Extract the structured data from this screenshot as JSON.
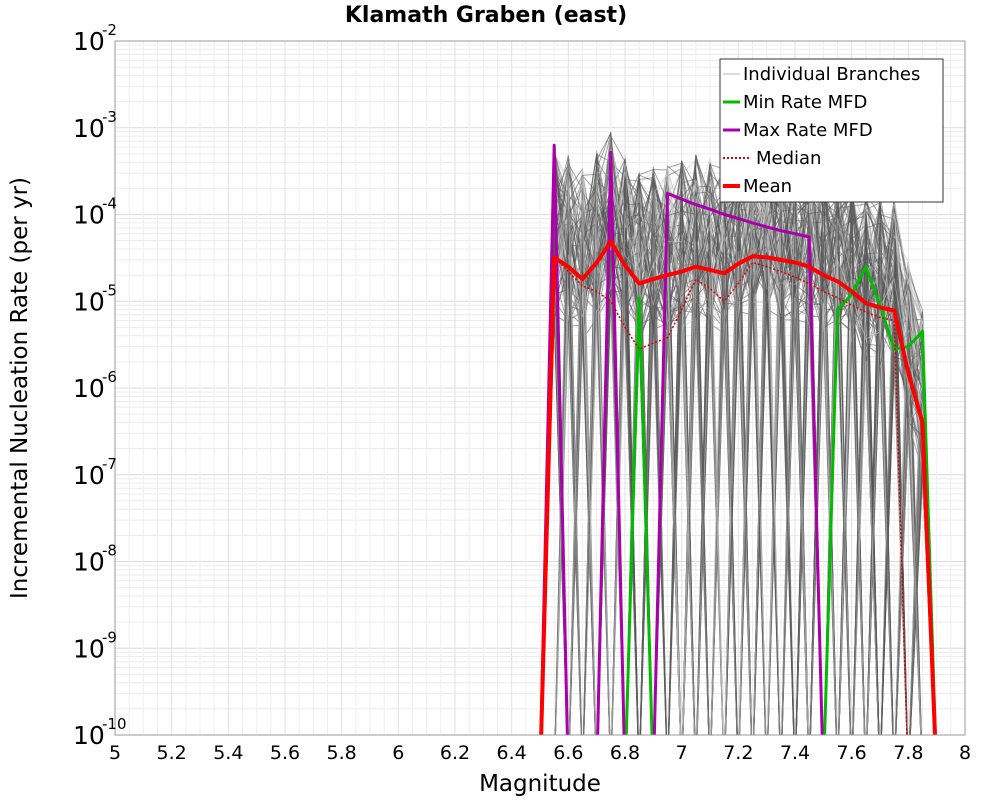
{
  "chart_data": {
    "type": "line",
    "title": "Klamath Graben (east)",
    "xlabel": "Magnitude",
    "ylabel": "Incremental Nucleation Rate (per yr)",
    "xlim": [
      5.0,
      8.0
    ],
    "ylim_log10": [
      -10,
      -2
    ],
    "y_scale": "log",
    "grid": true,
    "legend_position": "top-right",
    "x_ticks": [
      "5",
      "5.2",
      "5.4",
      "5.6",
      "5.8",
      "6",
      "6.2",
      "6.4",
      "6.6",
      "6.8",
      "7",
      "7.2",
      "7.4",
      "7.6",
      "7.8",
      "8"
    ],
    "y_ticks": [
      {
        "base": "10",
        "exp": "-2",
        "log": -2
      },
      {
        "base": "10",
        "exp": "-3",
        "log": -3
      },
      {
        "base": "10",
        "exp": "-4",
        "log": -4
      },
      {
        "base": "10",
        "exp": "-5",
        "log": -5
      },
      {
        "base": "10",
        "exp": "-6",
        "log": -6
      },
      {
        "base": "10",
        "exp": "-7",
        "log": -7
      },
      {
        "base": "10",
        "exp": "-8",
        "log": -8
      },
      {
        "base": "10",
        "exp": "-9",
        "log": -9
      },
      {
        "base": "10",
        "exp": "-10",
        "log": -10
      }
    ],
    "legend": [
      {
        "label": "Individual Branches",
        "color": "#b4b4b4",
        "style": "thin"
      },
      {
        "label": "Min Rate MFD",
        "color": "#00bb00",
        "style": "solid"
      },
      {
        "label": "Max Rate MFD",
        "color": "#aa00aa",
        "style": "solid"
      },
      {
        "label": "Median",
        "color": "#dd0000",
        "style": "dotted"
      },
      {
        "label": "Mean",
        "color": "#ff0000",
        "style": "thick"
      }
    ],
    "series": [
      {
        "name": "Min Rate MFD",
        "color": "#00bb00",
        "x": [
          5.0,
          6.5,
          6.55,
          6.6,
          6.65,
          6.7,
          6.75,
          6.8,
          6.85,
          6.9,
          6.95,
          7.0,
          7.05,
          7.1,
          7.15,
          7.2,
          7.25,
          7.3,
          7.35,
          7.4,
          7.45,
          7.5,
          7.55,
          7.6,
          7.65,
          7.7,
          7.75,
          7.8,
          7.85,
          7.9,
          8.0
        ],
        "y": [
          1e-11,
          1e-11,
          1e-11,
          1e-11,
          1e-11,
          1e-11,
          1e-11,
          1e-11,
          1.1e-05,
          1e-11,
          1e-11,
          1e-11,
          1e-11,
          1e-11,
          1e-11,
          1e-11,
          1e-11,
          1e-11,
          1e-11,
          1e-11,
          1e-11,
          1e-11,
          8e-06,
          1.2e-05,
          2.5e-05,
          9e-06,
          2.8e-06,
          3e-06,
          4.5e-06,
          1e-11,
          1e-11
        ]
      },
      {
        "name": "Max Rate MFD",
        "color": "#aa00aa",
        "x": [
          5.0,
          6.5,
          6.55,
          6.6,
          6.65,
          6.7,
          6.75,
          6.8,
          6.85,
          6.9,
          6.95,
          7.0,
          7.05,
          7.1,
          7.15,
          7.2,
          7.25,
          7.3,
          7.35,
          7.4,
          7.45,
          7.5,
          7.55,
          8.0
        ],
        "y": [
          1e-11,
          1e-11,
          0.00063,
          1e-11,
          1e-11,
          1e-11,
          0.00052,
          1e-11,
          1e-11,
          1e-11,
          0.000175,
          0.00015,
          0.00013,
          0.000115,
          0.0001,
          9e-05,
          8e-05,
          7.2e-05,
          6.5e-05,
          6e-05,
          5.5e-05,
          1e-11,
          1e-11,
          1e-11
        ]
      },
      {
        "name": "Median",
        "color": "#dd0000",
        "x": [
          5.0,
          6.5,
          6.55,
          6.6,
          6.65,
          6.7,
          6.75,
          6.8,
          6.85,
          6.9,
          6.95,
          7.0,
          7.05,
          7.1,
          7.15,
          7.2,
          7.25,
          7.3,
          7.35,
          7.4,
          7.45,
          7.5,
          7.55,
          7.6,
          7.65,
          7.7,
          7.75,
          7.8,
          7.85,
          7.9,
          8.0
        ],
        "y": [
          1e-11,
          1e-11,
          3.2e-05,
          2.2e-05,
          1.5e-05,
          1.3e-05,
          1e-05,
          5e-06,
          2.8e-06,
          3.3e-06,
          3.8e-06,
          8e-06,
          1.8e-05,
          1.4e-05,
          1e-05,
          1.6e-05,
          2.8e-05,
          2.5e-05,
          2.2e-05,
          1.9e-05,
          1.6e-05,
          1.3e-05,
          1.1e-05,
          9e-06,
          7.5e-06,
          6.5e-06,
          6e-06,
          1e-11,
          1e-11,
          1e-11,
          1e-11
        ]
      },
      {
        "name": "Mean",
        "color": "#ff0000",
        "x": [
          5.0,
          6.5,
          6.55,
          6.6,
          6.65,
          6.7,
          6.75,
          6.8,
          6.85,
          6.9,
          6.95,
          7.0,
          7.05,
          7.1,
          7.15,
          7.2,
          7.25,
          7.3,
          7.35,
          7.4,
          7.45,
          7.5,
          7.55,
          7.6,
          7.65,
          7.7,
          7.75,
          7.8,
          7.85,
          7.9,
          8.0
        ],
        "y": [
          1e-11,
          1e-11,
          3.2e-05,
          2.5e-05,
          1.8e-05,
          2.8e-05,
          4.9e-05,
          2.6e-05,
          1.6e-05,
          1.8e-05,
          2e-05,
          2.2e-05,
          2.5e-05,
          2.3e-05,
          2.1e-05,
          2.7e-05,
          3.3e-05,
          3.2e-05,
          3e-05,
          2.8e-05,
          2.5e-05,
          2e-05,
          1.7e-05,
          1.3e-05,
          9.5e-06,
          8.5e-06,
          7.8e-06,
          1.5e-06,
          4e-07,
          1e-11,
          1e-11
        ]
      }
    ]
  }
}
